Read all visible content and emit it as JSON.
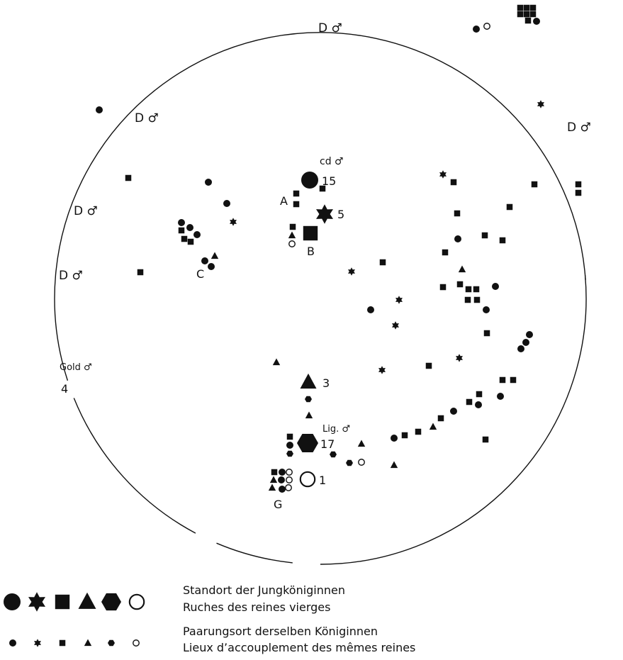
{
  "colors": {
    "ink": "#111111",
    "paper": "#ffffff"
  },
  "drone_labels": {
    "d_top": "D ♂",
    "d_upper_left": "D ♂",
    "d_upper_right": "D ♂",
    "d_mid_left": "D ♂",
    "d_left": "D ♂",
    "gold": "Gold ♂",
    "gold_count": "4",
    "cd": "cd ♂",
    "lig": "Lig. ♂"
  },
  "hive_labels": {
    "A": "A",
    "B": "B",
    "C": "C",
    "G": "G",
    "n15": "15",
    "n5": "5",
    "n3": "3",
    "n17": "17",
    "n1": "1"
  },
  "legend": {
    "hives_de": "Standort der Jungköniginnen",
    "hives_fr": "Ruches des reines vierges",
    "mating_de": "Paarungsort derselben Königinnen",
    "mating_fr": "Lieux d’accouplement des mêmes reines",
    "symbol_shapes": [
      "circle",
      "star",
      "square",
      "triangle",
      "hexagon",
      "open-circle"
    ]
  }
}
